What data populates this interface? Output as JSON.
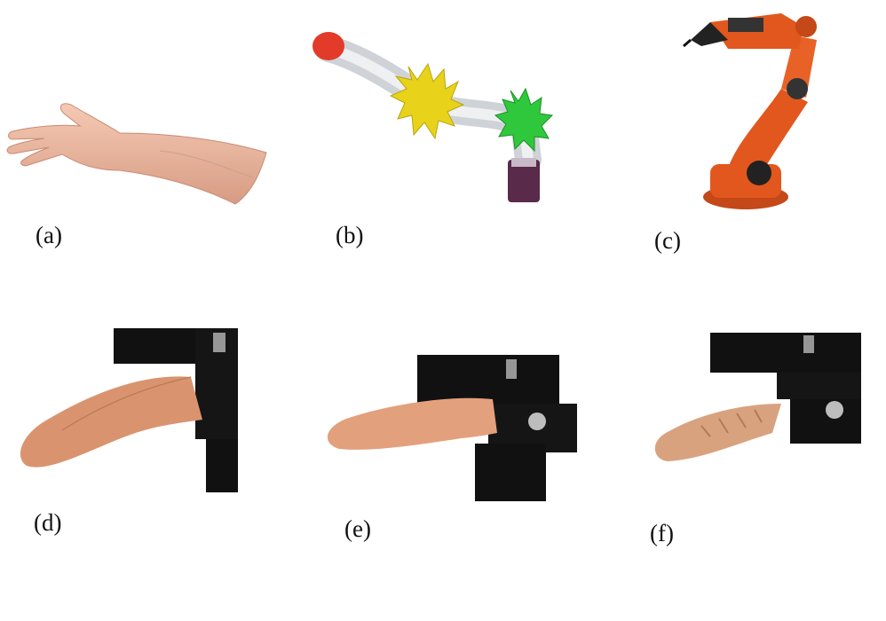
{
  "panels": [
    {
      "id": "a",
      "label": "(a)"
    },
    {
      "id": "b",
      "label": "(b)"
    },
    {
      "id": "c",
      "label": "(c)"
    },
    {
      "id": "d",
      "label": "(d)"
    },
    {
      "id": "e",
      "label": "(e)"
    },
    {
      "id": "f",
      "label": "(f)"
    }
  ],
  "colors": {
    "skin": "#f2b9a3",
    "tongue": "#d9946f",
    "robot_orange": "#e2571d",
    "soft_yellow": "#e8d21a",
    "soft_green": "#2fc83c",
    "bracket_black": "#111111"
  }
}
